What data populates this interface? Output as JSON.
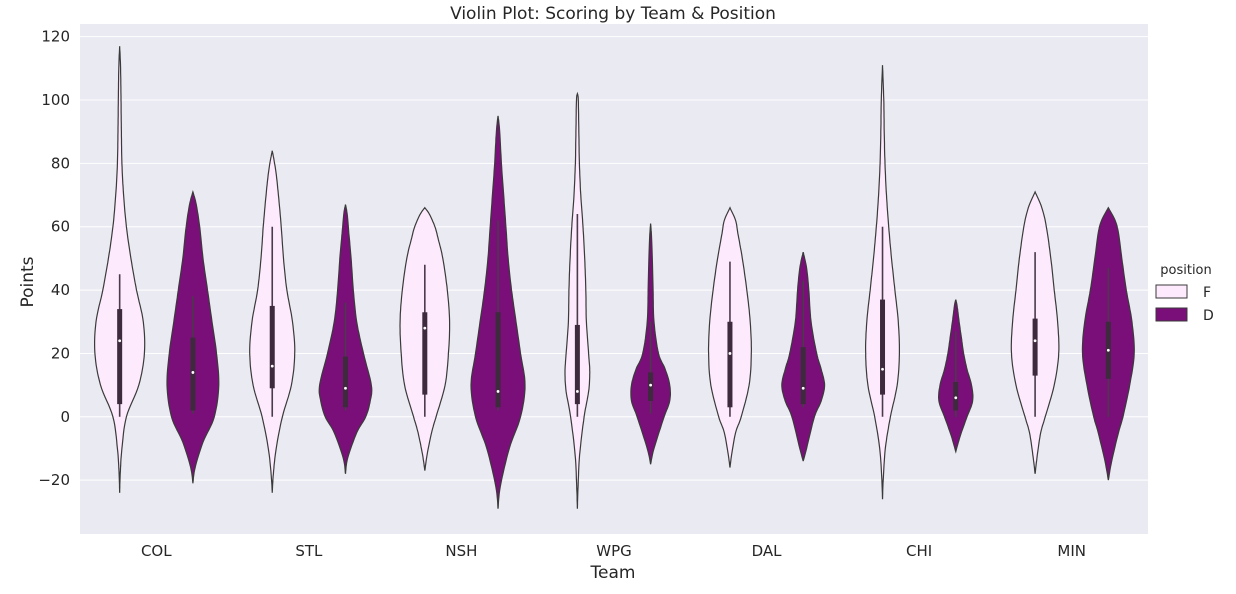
{
  "chart_data": {
    "type": "violin",
    "title": "Violin Plot: Scoring by Team & Position",
    "xlabel": "Team",
    "ylabel": "Points",
    "ylim": [
      -37,
      124
    ],
    "yticks": [
      -20,
      0,
      20,
      40,
      60,
      80,
      100,
      120
    ],
    "ytick_labels": [
      "−20",
      "0",
      "20",
      "40",
      "60",
      "80",
      "100",
      "120"
    ],
    "categories": [
      "COL",
      "STL",
      "NSH",
      "WPG",
      "DAL",
      "CHI",
      "MIN"
    ],
    "grid": true,
    "legend": {
      "title": "position",
      "placement": "right"
    },
    "series": [
      {
        "name": "F",
        "color": "#fdeafd",
        "violins": [
          {
            "range": [
              -24,
              117
            ],
            "profile": [
              [
                -24,
                0
              ],
              [
                -18,
                0.5
              ],
              [
                -10,
                2
              ],
              [
                0,
                6
              ],
              [
                10,
                17
              ],
              [
                20,
                22
              ],
              [
                30,
                21
              ],
              [
                40,
                15
              ],
              [
                50,
                10
              ],
              [
                60,
                6
              ],
              [
                70,
                3.5
              ],
              [
                80,
                2
              ],
              [
                90,
                1.5
              ],
              [
                100,
                1.2
              ],
              [
                110,
                0.8
              ],
              [
                117,
                0
              ]
            ],
            "whisker": [
              0,
              45
            ],
            "q1": 4,
            "q3": 34,
            "median": 24
          },
          {
            "range": [
              -24,
              84
            ],
            "profile": [
              [
                -24,
                0
              ],
              [
                -18,
                1
              ],
              [
                -10,
                3.5
              ],
              [
                0,
                9
              ],
              [
                10,
                17
              ],
              [
                20,
                20
              ],
              [
                30,
                18
              ],
              [
                40,
                13
              ],
              [
                50,
                10
              ],
              [
                60,
                8
              ],
              [
                70,
                5.5
              ],
              [
                78,
                3
              ],
              [
                84,
                0
              ]
            ],
            "whisker": [
              0,
              60
            ],
            "q1": 9,
            "q3": 35,
            "median": 16
          },
          {
            "range": [
              -17,
              66
            ],
            "profile": [
              [
                -17,
                0
              ],
              [
                -12,
                2
              ],
              [
                -5,
                6
              ],
              [
                0,
                10
              ],
              [
                10,
                18
              ],
              [
                20,
                21
              ],
              [
                30,
                22
              ],
              [
                40,
                20
              ],
              [
                50,
                16
              ],
              [
                56,
                12
              ],
              [
                60,
                9
              ],
              [
                64,
                4
              ],
              [
                66,
                0
              ]
            ],
            "whisker": [
              0,
              48
            ],
            "q1": 7,
            "q3": 33,
            "median": 28
          },
          {
            "range": [
              -29,
              102
            ],
            "profile": [
              [
                -29,
                0
              ],
              [
                -22,
                0.6
              ],
              [
                -12,
                2
              ],
              [
                0,
                6
              ],
              [
                8,
                10
              ],
              [
                14,
                11
              ],
              [
                20,
                10
              ],
              [
                30,
                8
              ],
              [
                40,
                7.5
              ],
              [
                50,
                6.5
              ],
              [
                60,
                5
              ],
              [
                70,
                3
              ],
              [
                80,
                1.8
              ],
              [
                90,
                1.3
              ],
              [
                100,
                0.8
              ],
              [
                102,
                0
              ]
            ],
            "whisker": [
              0,
              64
            ],
            "q1": 4,
            "q3": 29,
            "median": 8
          },
          {
            "range": [
              -16,
              66
            ],
            "profile": [
              [
                -16,
                0
              ],
              [
                -12,
                1.5
              ],
              [
                -5,
                5
              ],
              [
                0,
                10
              ],
              [
                10,
                17
              ],
              [
                20,
                19
              ],
              [
                30,
                18
              ],
              [
                40,
                15
              ],
              [
                50,
                11
              ],
              [
                58,
                7
              ],
              [
                62,
                5
              ],
              [
                66,
                0
              ]
            ],
            "whisker": [
              0,
              49
            ],
            "q1": 3,
            "q3": 30,
            "median": 20
          },
          {
            "range": [
              -26,
              111
            ],
            "profile": [
              [
                -26,
                0
              ],
              [
                -20,
                0.6
              ],
              [
                -10,
                2.5
              ],
              [
                0,
                7
              ],
              [
                10,
                13
              ],
              [
                20,
                15
              ],
              [
                30,
                14
              ],
              [
                40,
                11
              ],
              [
                50,
                8
              ],
              [
                60,
                5.5
              ],
              [
                70,
                3.5
              ],
              [
                80,
                2.2
              ],
              [
                90,
                1.5
              ],
              [
                100,
                1.1
              ],
              [
                111,
                0
              ]
            ],
            "whisker": [
              0,
              60
            ],
            "q1": 7,
            "q3": 37,
            "median": 15
          },
          {
            "range": [
              -18,
              71
            ],
            "profile": [
              [
                -18,
                0
              ],
              [
                -12,
                2
              ],
              [
                -5,
                5
              ],
              [
                0,
                9
              ],
              [
                10,
                17
              ],
              [
                20,
                21
              ],
              [
                30,
                20
              ],
              [
                40,
                17
              ],
              [
                50,
                14
              ],
              [
                60,
                10
              ],
              [
                66,
                6
              ],
              [
                71,
                0
              ]
            ],
            "whisker": [
              0,
              52
            ],
            "q1": 13,
            "q3": 31,
            "median": 24
          }
        ]
      },
      {
        "name": "D",
        "color": "#7a0f7a",
        "violins": [
          {
            "range": [
              -21,
              71
            ],
            "profile": [
              [
                -21,
                0
              ],
              [
                -16,
                2
              ],
              [
                -8,
                9
              ],
              [
                0,
                19
              ],
              [
                10,
                23
              ],
              [
                20,
                21
              ],
              [
                30,
                17
              ],
              [
                40,
                13
              ],
              [
                50,
                9
              ],
              [
                60,
                6
              ],
              [
                67,
                3
              ],
              [
                71,
                0
              ]
            ],
            "whisker": [
              1,
              38
            ],
            "q1": 2,
            "q3": 25,
            "median": 14
          },
          {
            "range": [
              -18,
              67
            ],
            "profile": [
              [
                -18,
                0
              ],
              [
                -13,
                2
              ],
              [
                -5,
                10
              ],
              [
                0,
                18
              ],
              [
                5,
                22
              ],
              [
                10,
                23
              ],
              [
                20,
                16
              ],
              [
                30,
                10
              ],
              [
                40,
                7
              ],
              [
                50,
                5
              ],
              [
                58,
                3
              ],
              [
                64,
                1.5
              ],
              [
                67,
                0
              ]
            ],
            "whisker": [
              2,
              36
            ],
            "q1": 3,
            "q3": 19,
            "median": 9
          },
          {
            "range": [
              -29,
              95
            ],
            "profile": [
              [
                -29,
                0
              ],
              [
                -22,
                2
              ],
              [
                -10,
                10
              ],
              [
                0,
                20
              ],
              [
                10,
                24
              ],
              [
                20,
                20
              ],
              [
                30,
                16
              ],
              [
                40,
                12
              ],
              [
                50,
                9
              ],
              [
                60,
                7
              ],
              [
                70,
                5
              ],
              [
                80,
                3
              ],
              [
                90,
                1.5
              ],
              [
                95,
                0
              ]
            ],
            "whisker": [
              2,
              62
            ],
            "q1": 3,
            "q3": 33,
            "median": 8
          },
          {
            "range": [
              -15,
              61
            ],
            "profile": [
              [
                -15,
                0
              ],
              [
                -10,
                3
              ],
              [
                0,
                12
              ],
              [
                5,
                17
              ],
              [
                10,
                17
              ],
              [
                15,
                13
              ],
              [
                20,
                7
              ],
              [
                30,
                3
              ],
              [
                40,
                2.2
              ],
              [
                50,
                1.5
              ],
              [
                57,
                0.8
              ],
              [
                61,
                0
              ]
            ],
            "whisker": [
              1,
              30
            ],
            "q1": 5,
            "q3": 14,
            "median": 10
          },
          {
            "range": [
              -14,
              52
            ],
            "profile": [
              [
                -14,
                0
              ],
              [
                -10,
                3
              ],
              [
                0,
                10
              ],
              [
                5,
                16
              ],
              [
                10,
                19
              ],
              [
                15,
                16
              ],
              [
                20,
                12
              ],
              [
                30,
                7
              ],
              [
                40,
                5
              ],
              [
                47,
                3
              ],
              [
                52,
                0
              ]
            ],
            "whisker": [
              3,
              43
            ],
            "q1": 4,
            "q3": 22,
            "median": 9
          },
          {
            "range": [
              -11,
              37
            ],
            "profile": [
              [
                -11,
                0
              ],
              [
                -6,
                4
              ],
              [
                0,
                10
              ],
              [
                5,
                15
              ],
              [
                10,
                14
              ],
              [
                15,
                10
              ],
              [
                20,
                7
              ],
              [
                25,
                5
              ],
              [
                30,
                3
              ],
              [
                35,
                1.2
              ],
              [
                37,
                0
              ]
            ],
            "whisker": [
              0,
              27
            ],
            "q1": 2,
            "q3": 11,
            "median": 6
          },
          {
            "range": [
              -20,
              66
            ],
            "profile": [
              [
                -20,
                0
              ],
              [
                -14,
                3
              ],
              [
                -5,
                9
              ],
              [
                0,
                13
              ],
              [
                10,
                19
              ],
              [
                20,
                23
              ],
              [
                30,
                21
              ],
              [
                40,
                16
              ],
              [
                50,
                12
              ],
              [
                58,
                9
              ],
              [
                62,
                6
              ],
              [
                66,
                0
              ]
            ],
            "whisker": [
              0,
              47
            ],
            "q1": 12,
            "q3": 30,
            "median": 21
          }
        ]
      }
    ]
  }
}
